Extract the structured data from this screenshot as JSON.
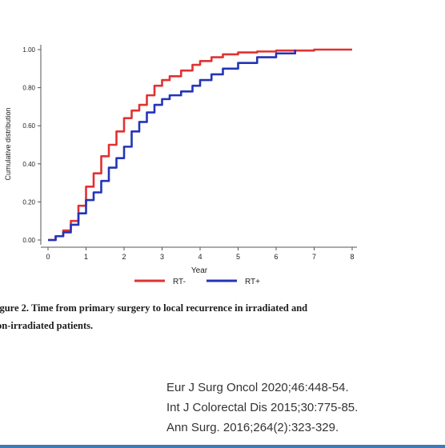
{
  "chart_data": {
    "type": "line",
    "step": true,
    "xlabel": "Year",
    "ylabel": "Cumulative distribution",
    "xlim": [
      0,
      8
    ],
    "ylim": [
      0,
      1
    ],
    "x_ticks": [
      "0",
      "1",
      "2",
      "3",
      "4",
      "5",
      "6",
      "7",
      "8"
    ],
    "y_ticks": [
      "0.00",
      "0.20",
      "0.40",
      "0.60",
      "0.80",
      "1.00"
    ],
    "grid": false,
    "legend_position": "bottom",
    "series": [
      {
        "name": "RT-",
        "color": "#e03232",
        "x": [
          0,
          0.2,
          0.4,
          0.6,
          0.8,
          1.0,
          1.2,
          1.4,
          1.6,
          1.8,
          2.0,
          2.2,
          2.4,
          2.6,
          2.8,
          3.0,
          3.2,
          3.5,
          3.8,
          4.0,
          4.3,
          4.6,
          5.0,
          5.5,
          6.0,
          7.0,
          8.0
        ],
        "y": [
          0,
          0.02,
          0.05,
          0.1,
          0.18,
          0.28,
          0.35,
          0.44,
          0.5,
          0.57,
          0.64,
          0.68,
          0.71,
          0.76,
          0.81,
          0.84,
          0.86,
          0.89,
          0.92,
          0.94,
          0.96,
          0.975,
          0.985,
          0.99,
          0.995,
          1.0,
          1.0
        ]
      },
      {
        "name": "RT+",
        "color": "#2434b8",
        "x": [
          0,
          0.2,
          0.4,
          0.6,
          0.8,
          1.0,
          1.2,
          1.4,
          1.6,
          1.8,
          2.0,
          2.2,
          2.4,
          2.6,
          2.8,
          3.0,
          3.2,
          3.5,
          3.8,
          4.0,
          4.3,
          4.6,
          5.0,
          5.5,
          6.0,
          6.5
        ],
        "y": [
          0,
          0.02,
          0.04,
          0.08,
          0.14,
          0.21,
          0.25,
          0.31,
          0.38,
          0.43,
          0.49,
          0.57,
          0.62,
          0.67,
          0.71,
          0.74,
          0.76,
          0.78,
          0.81,
          0.84,
          0.87,
          0.9,
          0.93,
          0.96,
          0.98,
          1.0
        ]
      }
    ]
  },
  "caption": {
    "line1": "igure 2. Time from primary surgery to local recurrence in irradiated and",
    "line2": "on-irradiated patients."
  },
  "references": [
    "Eur J Surg Oncol 2020;46:448-54.",
    "Int J Colorectal Dis 2015;30:775-85.",
    "Ann Surg. 2016;264(2):323-329."
  ]
}
